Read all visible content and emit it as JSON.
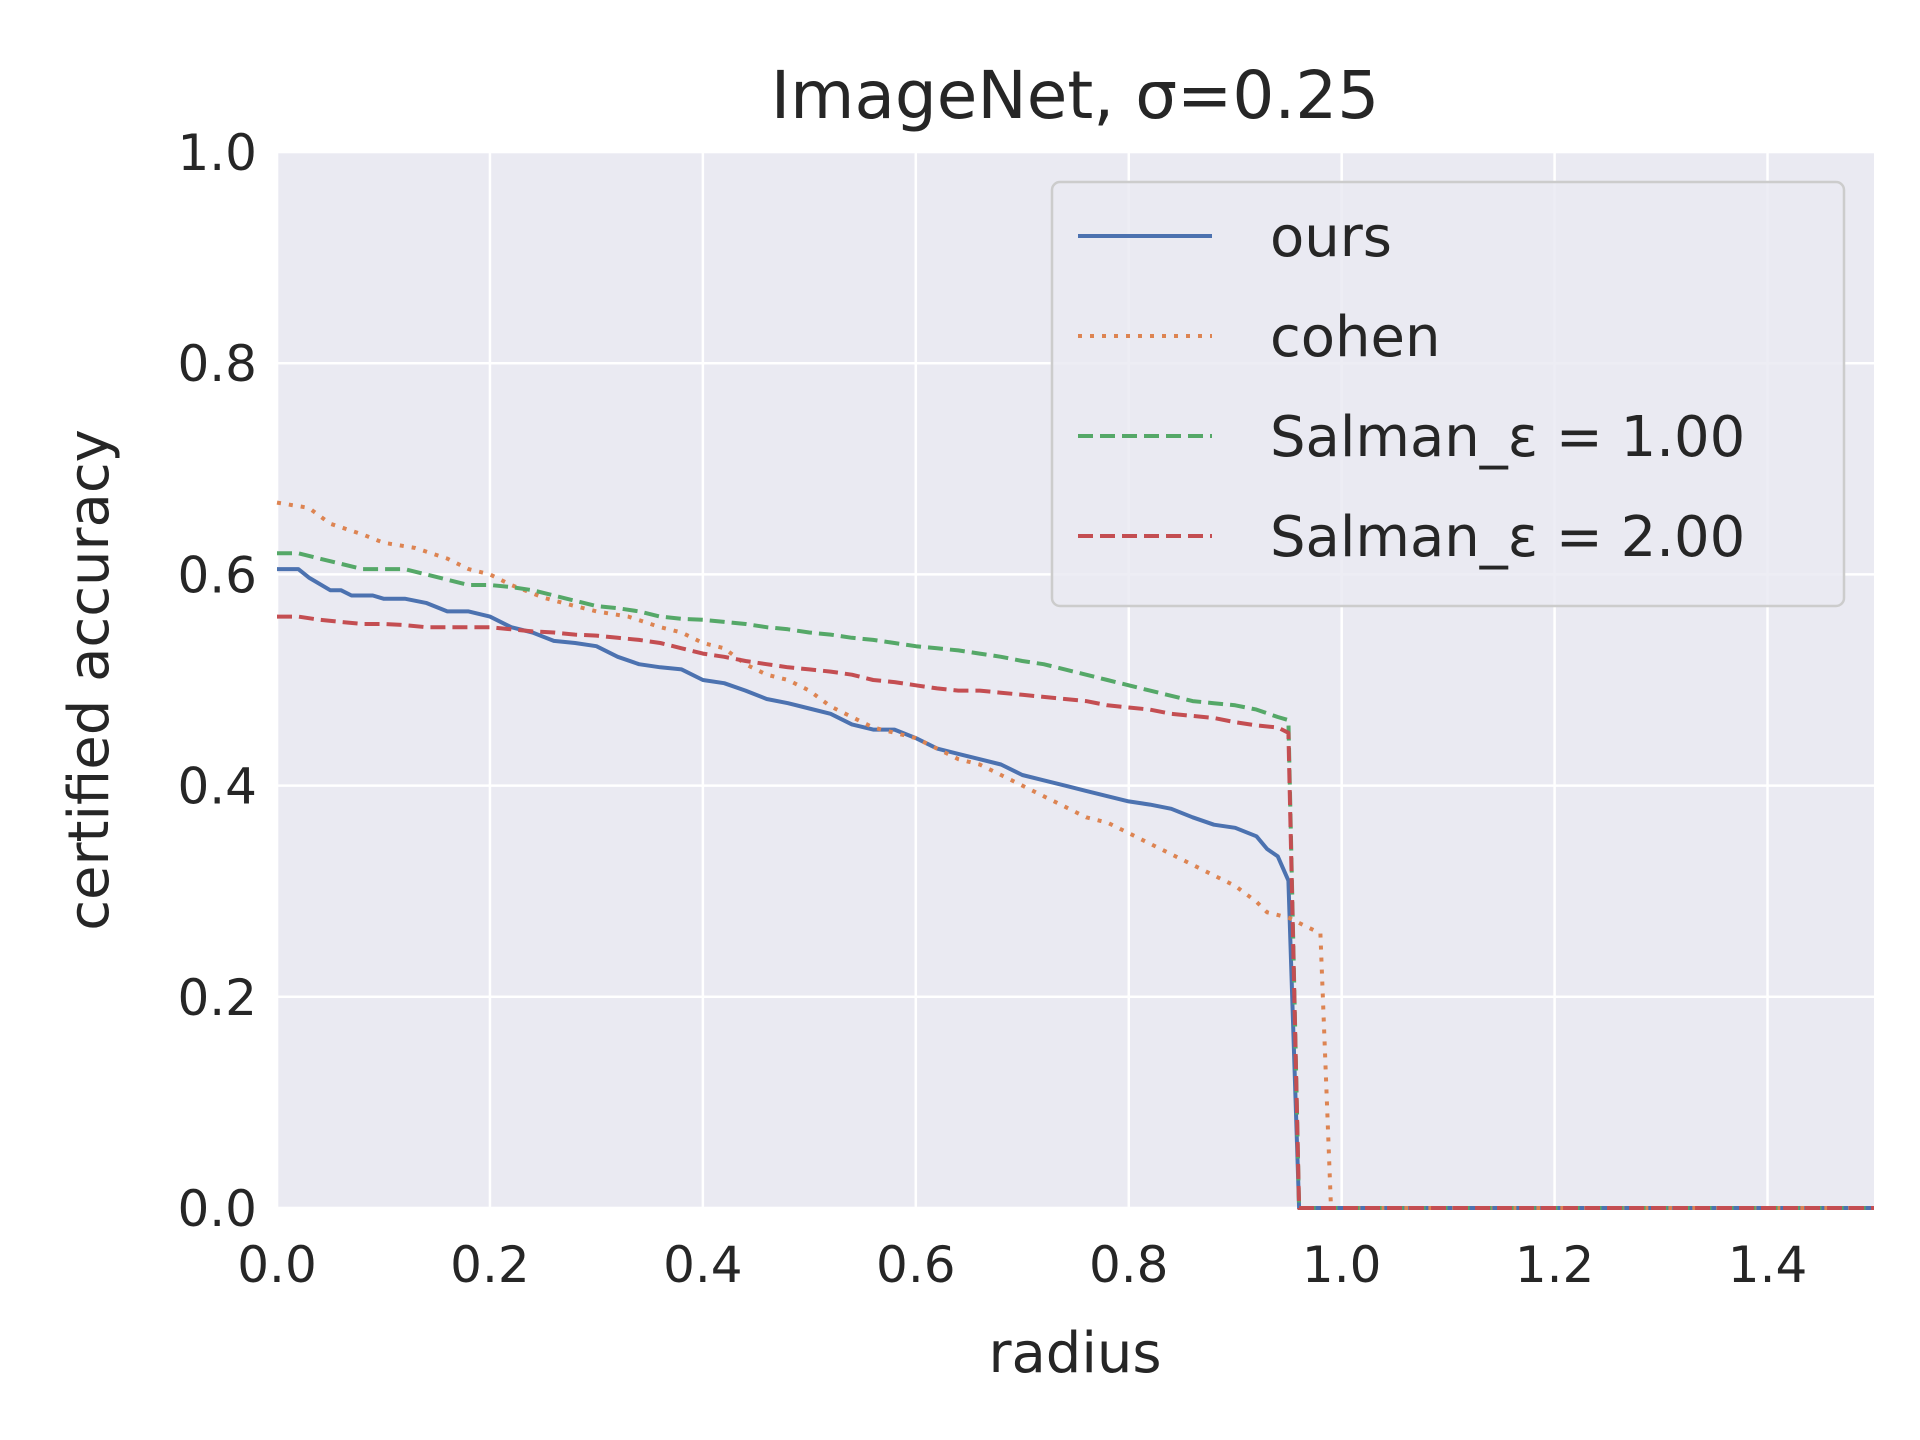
{
  "chart_data": {
    "type": "line",
    "title": "ImageNet, σ=0.25",
    "xlabel": "radius",
    "ylabel": "certified accuracy",
    "xlim": [
      0.0,
      1.5
    ],
    "ylim": [
      0.0,
      1.0
    ],
    "xticks": [
      "0.0",
      "0.2",
      "0.4",
      "0.6",
      "0.8",
      "1.0",
      "1.2",
      "1.4"
    ],
    "yticks": [
      "0.0",
      "0.2",
      "0.4",
      "0.6",
      "0.8",
      "1.0"
    ],
    "grid": true,
    "legend_position": "top-right",
    "background_color": "#eaeaf2",
    "series": [
      {
        "name": "ours",
        "color": "#4c72b0",
        "style": "solid",
        "x": [
          0.0,
          0.02,
          0.03,
          0.05,
          0.06,
          0.07,
          0.09,
          0.1,
          0.12,
          0.14,
          0.16,
          0.18,
          0.2,
          0.22,
          0.24,
          0.26,
          0.28,
          0.3,
          0.32,
          0.34,
          0.36,
          0.38,
          0.4,
          0.42,
          0.44,
          0.46,
          0.48,
          0.5,
          0.52,
          0.54,
          0.56,
          0.58,
          0.6,
          0.62,
          0.64,
          0.66,
          0.68,
          0.7,
          0.72,
          0.74,
          0.76,
          0.78,
          0.8,
          0.82,
          0.84,
          0.86,
          0.88,
          0.9,
          0.92,
          0.93,
          0.94,
          0.95,
          0.96,
          0.97,
          1.5
        ],
        "y": [
          0.605,
          0.605,
          0.597,
          0.585,
          0.585,
          0.58,
          0.58,
          0.577,
          0.577,
          0.573,
          0.565,
          0.565,
          0.56,
          0.55,
          0.545,
          0.537,
          0.535,
          0.532,
          0.522,
          0.515,
          0.512,
          0.51,
          0.5,
          0.497,
          0.49,
          0.482,
          0.478,
          0.473,
          0.468,
          0.458,
          0.453,
          0.453,
          0.445,
          0.435,
          0.43,
          0.425,
          0.42,
          0.41,
          0.405,
          0.4,
          0.395,
          0.39,
          0.385,
          0.382,
          0.378,
          0.37,
          0.363,
          0.36,
          0.352,
          0.34,
          0.333,
          0.31,
          0.0,
          0.0,
          0.0
        ]
      },
      {
        "name": "cohen",
        "color": "#dd8452",
        "style": "dotted",
        "x": [
          0.0,
          0.03,
          0.05,
          0.08,
          0.1,
          0.13,
          0.16,
          0.18,
          0.2,
          0.22,
          0.25,
          0.28,
          0.3,
          0.33,
          0.36,
          0.38,
          0.4,
          0.42,
          0.44,
          0.46,
          0.48,
          0.5,
          0.52,
          0.54,
          0.56,
          0.58,
          0.6,
          0.62,
          0.64,
          0.66,
          0.68,
          0.7,
          0.72,
          0.74,
          0.76,
          0.78,
          0.8,
          0.82,
          0.84,
          0.86,
          0.88,
          0.9,
          0.92,
          0.93,
          0.95,
          0.97,
          0.98,
          0.99,
          1.5
        ],
        "y": [
          0.668,
          0.663,
          0.648,
          0.638,
          0.63,
          0.625,
          0.615,
          0.605,
          0.6,
          0.59,
          0.578,
          0.57,
          0.565,
          0.56,
          0.55,
          0.545,
          0.535,
          0.53,
          0.515,
          0.505,
          0.5,
          0.49,
          0.475,
          0.465,
          0.455,
          0.45,
          0.445,
          0.435,
          0.425,
          0.42,
          0.41,
          0.4,
          0.39,
          0.38,
          0.37,
          0.365,
          0.355,
          0.345,
          0.335,
          0.325,
          0.315,
          0.305,
          0.29,
          0.28,
          0.275,
          0.265,
          0.26,
          0.0,
          0.0
        ]
      },
      {
        "name": "Salman_ε = 1.00",
        "color": "#55a868",
        "style": "dashed",
        "x": [
          0.0,
          0.02,
          0.04,
          0.06,
          0.08,
          0.1,
          0.12,
          0.14,
          0.16,
          0.18,
          0.2,
          0.22,
          0.24,
          0.26,
          0.28,
          0.3,
          0.32,
          0.34,
          0.36,
          0.38,
          0.4,
          0.42,
          0.44,
          0.46,
          0.48,
          0.5,
          0.52,
          0.54,
          0.56,
          0.58,
          0.6,
          0.62,
          0.64,
          0.66,
          0.68,
          0.7,
          0.72,
          0.74,
          0.76,
          0.78,
          0.8,
          0.82,
          0.84,
          0.86,
          0.88,
          0.9,
          0.92,
          0.94,
          0.95,
          0.96,
          1.5
        ],
        "y": [
          0.62,
          0.62,
          0.615,
          0.61,
          0.605,
          0.605,
          0.605,
          0.6,
          0.595,
          0.59,
          0.59,
          0.588,
          0.585,
          0.58,
          0.575,
          0.57,
          0.568,
          0.565,
          0.56,
          0.558,
          0.557,
          0.555,
          0.553,
          0.55,
          0.548,
          0.545,
          0.543,
          0.54,
          0.538,
          0.535,
          0.532,
          0.53,
          0.528,
          0.525,
          0.522,
          0.518,
          0.515,
          0.51,
          0.505,
          0.5,
          0.495,
          0.49,
          0.485,
          0.48,
          0.478,
          0.476,
          0.472,
          0.465,
          0.462,
          0.0,
          0.0
        ]
      },
      {
        "name": "Salman_ε = 2.00",
        "color": "#c44e52",
        "style": "dashed",
        "x": [
          0.0,
          0.02,
          0.04,
          0.06,
          0.08,
          0.1,
          0.12,
          0.14,
          0.16,
          0.18,
          0.2,
          0.22,
          0.24,
          0.26,
          0.28,
          0.3,
          0.32,
          0.34,
          0.36,
          0.38,
          0.4,
          0.42,
          0.44,
          0.46,
          0.48,
          0.5,
          0.52,
          0.54,
          0.56,
          0.58,
          0.6,
          0.62,
          0.64,
          0.66,
          0.68,
          0.7,
          0.72,
          0.74,
          0.76,
          0.78,
          0.8,
          0.82,
          0.84,
          0.86,
          0.88,
          0.9,
          0.92,
          0.94,
          0.95,
          0.96,
          1.5
        ],
        "y": [
          0.56,
          0.56,
          0.557,
          0.555,
          0.553,
          0.553,
          0.552,
          0.55,
          0.55,
          0.55,
          0.55,
          0.548,
          0.546,
          0.545,
          0.543,
          0.542,
          0.54,
          0.538,
          0.535,
          0.53,
          0.525,
          0.522,
          0.518,
          0.515,
          0.512,
          0.51,
          0.508,
          0.505,
          0.5,
          0.498,
          0.495,
          0.492,
          0.49,
          0.49,
          0.488,
          0.486,
          0.484,
          0.482,
          0.48,
          0.476,
          0.474,
          0.472,
          0.468,
          0.466,
          0.464,
          0.46,
          0.457,
          0.455,
          0.45,
          0.0,
          0.0
        ]
      }
    ]
  }
}
